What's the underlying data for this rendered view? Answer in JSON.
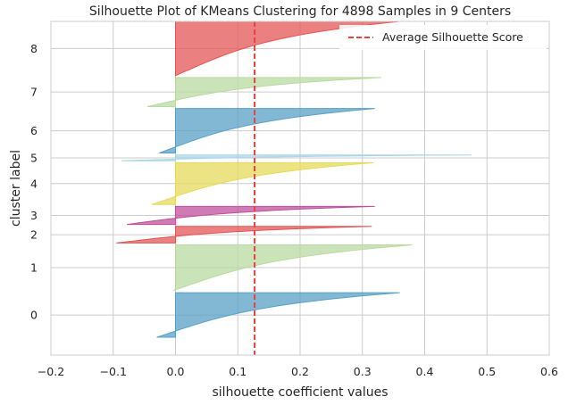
{
  "chart_data": {
    "type": "area",
    "title": "Silhouette Plot of KMeans Clustering for 4898 Samples in 9 Centers",
    "xlabel": "silhouette coefficient values",
    "ylabel": "cluster label",
    "xlim": [
      -0.2,
      0.6
    ],
    "x_ticks": [
      "−0.2",
      "−0.1",
      "0.0",
      "0.1",
      "0.2",
      "0.3",
      "0.4",
      "0.5",
      "0.6"
    ],
    "grid": true,
    "average_score": 0.127,
    "legend": {
      "label": "Average Silhouette Score",
      "placement": "top-right",
      "color": "#e8403f"
    },
    "clusters": [
      {
        "label": "0",
        "y_range": [
          10,
          1160
        ],
        "color": "#5aa0c6",
        "min": -0.03,
        "max": 0.36
      },
      {
        "label": "1",
        "y_range": [
          1220,
          2395
        ],
        "color": "#bad9a2",
        "min": -0.003,
        "max": 0.38
      },
      {
        "label": "2",
        "y_range": [
          2445,
          2875
        ],
        "color": "#e35555",
        "min": -0.095,
        "max": 0.315
      },
      {
        "label": "3",
        "y_range": [
          2925,
          3390
        ],
        "color": "#c04f9b",
        "min": -0.078,
        "max": 0.32
      },
      {
        "label": "4",
        "y_range": [
          3440,
          4520
        ],
        "color": "#e5da5c",
        "min": -0.038,
        "max": 0.318
      },
      {
        "label": "5",
        "y_range": [
          4570,
          4720
        ],
        "color": "#a9d6e6",
        "min": -0.087,
        "max": 0.475
      },
      {
        "label": "6",
        "y_range": [
          4770,
          5920
        ],
        "color": "#5aa0c6",
        "min": -0.026,
        "max": 0.32
      },
      {
        "label": "7",
        "y_range": [
          5970,
          6720
        ],
        "color": "#bad9a2",
        "min": -0.045,
        "max": 0.33
      },
      {
        "label": "8",
        "y_range": [
          6770,
          8170
        ],
        "color": "#e35555",
        "min": 0.0,
        "max": 0.36
      }
    ],
    "y_extent": [
      -450,
      8170
    ]
  }
}
